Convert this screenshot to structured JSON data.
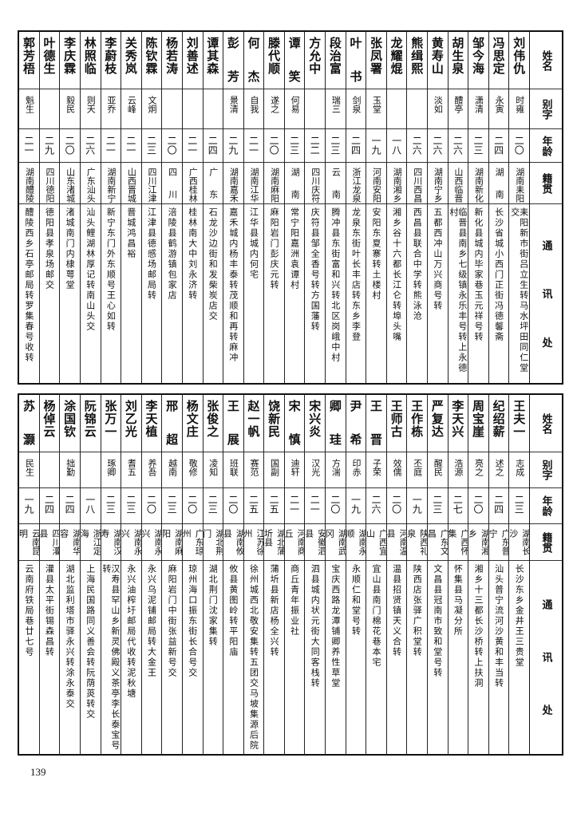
{
  "headers": {
    "name": "姓名",
    "alias": "别字",
    "age": "年龄",
    "origin": "籍贯",
    "address": "通讯处"
  },
  "top_rows": [
    {
      "name": "刘伟仇",
      "alias": "时雍",
      "age": "二〇",
      "origin": "湖南耒阳",
      "address": "耒阳新市街吕立生转马水坪田同仁堂交"
    },
    {
      "name": "冯思定",
      "alias": "永寅",
      "age": "二四",
      "origin": "湖南",
      "address": "长沙省城小西门正街冯德馨斋"
    },
    {
      "name": "邹今海",
      "alias": "潇清",
      "age": "二三",
      "origin": "湖南新化",
      "address": "新化县城内毕家巷玉元祥号转"
    },
    {
      "name": "胡生泉",
      "alias": "醴亭",
      "age": "二六",
      "origin": "山西临晋",
      "address": "临晋县南乡七级镇永乐丰号转上永德村"
    },
    {
      "name": "黄寿山",
      "alias": "淡如",
      "age": "二六",
      "origin": "湖南宁乡",
      "address": "五都西冲山万兴商号转"
    },
    {
      "name": "熊缉熙",
      "alias": "",
      "age": "二六",
      "origin": "四川西昌",
      "address": "西昌县联合中学转熊泳沧"
    },
    {
      "name": "龙耀焜",
      "alias": "",
      "age": "一八",
      "origin": "湖南湘乡",
      "address": "湘乡谷十六都长江仑转埠头嘴"
    },
    {
      "name": "张凤署",
      "alias": "玉堂",
      "age": "一九",
      "origin": "河南安阳",
      "address": "安阳东夏寨转土楼村"
    },
    {
      "name": "叶书",
      "alias": "剑泉",
      "age": "二四",
      "origin": "浙江龙泉",
      "address": "龙泉东街叶长丰店转东乡李登"
    },
    {
      "name": "段治富",
      "alias": "瑞三",
      "age": "二三",
      "origin": "云南",
      "address": "腾冲县东街富和兴转北区岗峨中村"
    },
    {
      "name": "方允中",
      "alias": "",
      "age": "二二",
      "origin": "四川庆符",
      "address": "庆符县邹全香号转方国藩转"
    },
    {
      "name": "谭笑",
      "alias": "何易",
      "age": "二三",
      "origin": "湖南",
      "address": "常宁阳嘉洲袁谭村"
    },
    {
      "name": "滕代顺",
      "alias": "遂之",
      "age": "二〇",
      "origin": "湖南麻阳",
      "address": "麻阳岩门彭庆元转"
    },
    {
      "name": "何杰",
      "alias": "自我",
      "age": "二一",
      "origin": "湖南江华",
      "address": "江华县城内何宅"
    },
    {
      "name": "彭芳",
      "alias": "景清",
      "age": "二九",
      "origin": "湖南嘉禾",
      "address": "嘉禾城内杨丰泰转茂顺和再转麻冲"
    },
    {
      "name": "谭其森",
      "alias": "",
      "age": "二四",
      "origin": "广东",
      "address": "石龙沙边街和发柴炭店交"
    },
    {
      "name": "刘善述",
      "alias": "",
      "age": "二一",
      "origin": "广西桂林",
      "address": "桂林南大中刘永济转"
    },
    {
      "name": "杨若涛",
      "alias": "",
      "age": "二〇",
      "origin": "四川",
      "address": "涪陵县鹤游镇包家店"
    },
    {
      "name": "陈钦霖",
      "alias": "文炯",
      "age": "二三",
      "origin": "四川江津",
      "address": "江津县德感场邮局转"
    },
    {
      "name": "关秀岚",
      "alias": "云峰",
      "age": "二一",
      "origin": "山西晋城",
      "address": "晋城鸿昌裕"
    },
    {
      "name": "李蔚枝",
      "alias": "亚乔",
      "age": "二一",
      "origin": "湖南新宁",
      "address": "新宁东门外东顺号王心如转"
    },
    {
      "name": "林照临",
      "alias": "则天",
      "age": "二六",
      "origin": "广东汕头",
      "address": "汕头鲤湖林厚记转南山头交"
    },
    {
      "name": "李庆霖",
      "alias": "毅民",
      "age": "二〇",
      "origin": "山东渚城",
      "address": "渚城南门内棣萼堂"
    },
    {
      "name": "叶德生",
      "alias": "",
      "age": "二九",
      "origin": "四川德阳",
      "address": "德阳县孝泉场邮交"
    },
    {
      "name": "郭芳梧",
      "alias": "魁生",
      "age": "二一",
      "origin": "湖南醴陵",
      "address": "醴陵西乡石亭邮局转罗集春号收转"
    }
  ],
  "bottom_rows": [
    {
      "name": "王夫一",
      "alias": "志成",
      "age": "二三",
      "origin": "湖南长沙",
      "address": "长沙东乡金井王三贵堂"
    },
    {
      "name": "纪绍薪",
      "alias": "述之",
      "age": "二四",
      "origin": "广东普宁",
      "address": "汕头普宁流河沙黄和丰当转"
    },
    {
      "name": "周宝崖",
      "alias": "亮之",
      "age": "二〇",
      "origin": "湖南湘乡",
      "address": "湘乡十三都长沙桥转上扶洞"
    },
    {
      "name": "李天兴",
      "alias": "浩源",
      "age": "二七",
      "origin": "广西怀集",
      "address": "怀集县马凝分所"
    },
    {
      "name": "严复达",
      "alias": "醒民",
      "age": "二三",
      "origin": "广东文昌",
      "address": "文昌县冠南市致和堂号转"
    },
    {
      "name": "王作栋",
      "alias": "丕庭",
      "age": "一九",
      "origin": "陕西礼泉",
      "address": "陕西店张驿广积堂转"
    },
    {
      "name": "王师古",
      "alias": "效儒",
      "age": "二〇",
      "origin": "河南温县",
      "address": "温县招贤镇天义合转"
    },
    {
      "name": "王晋",
      "alias": "子荣",
      "age": "二六",
      "origin": "广西宜山",
      "address": "宜山县南门棉花巷本宅"
    },
    {
      "name": "尹希",
      "alias": "印赤",
      "age": "一九",
      "origin": "湖南永顺",
      "address": "永顺仁和堂号转"
    },
    {
      "name": "卿珪",
      "alias": "方湍",
      "age": "二〇",
      "origin": "湖南武冈",
      "address": "宝庆西路龙潭铺卿养性草堂"
    },
    {
      "name": "宋兴炎",
      "alias": "汉光",
      "age": "二一",
      "origin": "安徽泗县",
      "address": "泗县城内状元街大同客栈转"
    },
    {
      "name": "宋慎",
      "alias": "迪轩",
      "age": "二一",
      "origin": "河南商丘",
      "address": "商丘青年振业社"
    },
    {
      "name": "饶新民",
      "alias": "国副",
      "age": "二五",
      "origin": "湖北蒲圻县",
      "address": "蒲圻县新店杨全兴转"
    },
    {
      "name": "赵一帆",
      "alias": "赛范",
      "age": "二五",
      "origin": "江苏徐州",
      "address": "徐州城西北敬安集转五团交马坡集源后院"
    },
    {
      "name": "王展",
      "alias": "班联",
      "age": "二〇",
      "origin": "湖南攸县",
      "address": "攸县黄图岭转平阳庙"
    },
    {
      "name": "张俊之",
      "alias": "凌知",
      "age": "二三",
      "origin": "湖北荆门",
      "address": "湖北荆门沈家集转"
    },
    {
      "name": "杨文庄",
      "alias": "敬修",
      "age": "二〇",
      "origin": "广东琼州",
      "address": "琼州海口振东街长合号交"
    },
    {
      "name": "邢超",
      "alias": "越南",
      "age": "二三",
      "origin": "湖南麻阳",
      "address": "麻阳岩门中街张益新号交"
    },
    {
      "name": "李天植",
      "alias": "养吾",
      "age": "二〇",
      "origin": "湖南永兴",
      "address": "永兴乌泥铺邮局转大金王"
    },
    {
      "name": "刘乙光",
      "alias": "耆五",
      "age": "二三",
      "origin": "湖南永兴",
      "address": "永兴油榨圩邮局代收转泥秋塘"
    },
    {
      "name": "张万一",
      "alias": "琢卿",
      "age": "二三",
      "origin": "湖南汉寿",
      "address": "汉寿县罕山乡新灵佛殿义茶亭李长泰宝号转"
    },
    {
      "name": "阮锦云",
      "alias": "",
      "age": "一八",
      "origin": "浙江定海",
      "address": "上海民国路同义善会转阮荫菼转交"
    },
    {
      "name": "涂国钦",
      "alias": "拙勤",
      "age": "二四",
      "origin": "湖南华容",
      "address": "湖北监利塔市驿永兴转涂永泰交"
    },
    {
      "name": "杨倬云",
      "alias": "",
      "age": "二四",
      "origin": "四川灌县",
      "address": "灌县太平街锡森昌转"
    },
    {
      "name": "苏灏",
      "alias": "民生",
      "age": "一九",
      "origin": "云南昆明",
      "address": "云南府铁局巷廿七号"
    }
  ],
  "page_number": "139"
}
